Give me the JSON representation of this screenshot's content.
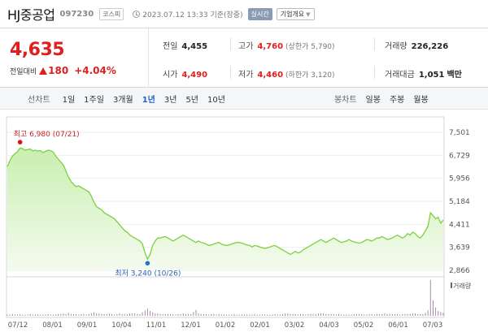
{
  "header": {
    "name": "HJ중공업",
    "code": "097230",
    "market": "코스피",
    "timestamp": "2023.07.12 13:33 기준(장중)",
    "realtime": "실시간",
    "company_button": "기업개요"
  },
  "quote": {
    "price": "4,635",
    "change_label": "전일대비",
    "change": "180",
    "change_percent": "+4.04%",
    "direction_icon": "up-triangle-icon",
    "prev_close_label": "전일",
    "prev_close": "4,455",
    "high_label": "고가",
    "high": "4,760",
    "upper_limit": "(상한가 5,790)",
    "volume_label": "거래량",
    "volume": "226,226",
    "open_label": "시가",
    "open": "4,490",
    "low_label": "저가",
    "low": "4,460",
    "lower_limit": "(하한가 3,120)",
    "amount_label": "거래대금",
    "amount": "1,051",
    "amount_unit": "백만"
  },
  "toolbar": {
    "line_label": "선차트",
    "periods": [
      "1일",
      "1주일",
      "3개월",
      "1년",
      "3년",
      "5년",
      "10년"
    ],
    "active_period": "1년",
    "candle_label": "봉차트",
    "candles": [
      "일봉",
      "주봉",
      "월봉"
    ]
  },
  "colors": {
    "up": "#e01e1e",
    "line": "#7fcf3f",
    "accent": "#2463c9"
  },
  "chart_data": {
    "type": "area",
    "y_ticks": [
      "7,501",
      "6,729",
      "5,956",
      "5,184",
      "4,411",
      "3,639",
      "2,866"
    ],
    "y_tick_values": [
      7501,
      6729,
      5956,
      5184,
      4411,
      3639,
      2866
    ],
    "ylim": [
      2866,
      7501
    ],
    "x_ticks": [
      "07/12",
      "08/01",
      "09/01",
      "10/04",
      "11/01",
      "12/01",
      "01/02",
      "02/01",
      "03/02",
      "04/03",
      "05/02",
      "06/01",
      "07/03"
    ],
    "high_annotation": "최고 6,980 (07/21)",
    "low_annotation": "최저 3,240 (10/26)",
    "high_value": 6980,
    "low_value": 3240,
    "volume_legend": "거래량",
    "series": [
      {
        "values": [
          6350,
          6550,
          6700,
          6780,
          6850,
          6980,
          6950,
          6900,
          6920,
          6940,
          6880,
          6900,
          6870,
          6890,
          6820,
          6860,
          6900,
          6880,
          6840,
          6700,
          6600,
          6500,
          6400,
          6200,
          6000,
          5850,
          5750,
          5680,
          5700,
          5650,
          5600,
          5550,
          5500,
          5350,
          5150,
          5000,
          4950,
          4900,
          4800,
          4750,
          4700,
          4650,
          4600,
          4500,
          4400,
          4300,
          4200,
          4150,
          4050,
          4000,
          3950,
          3900,
          3850,
          3750,
          3450,
          3240,
          3400,
          3700,
          3850,
          3950,
          3950,
          3980,
          4000,
          3950,
          3900,
          3850,
          3900,
          3950,
          4000,
          4050,
          4000,
          3950,
          3900,
          3850,
          3800,
          3850,
          3800,
          3780,
          3750,
          3700,
          3720,
          3750,
          3780,
          3800,
          3750,
          3720,
          3700,
          3720,
          3750,
          3780,
          3800,
          3800,
          3780,
          3750,
          3720,
          3700,
          3650,
          3700,
          3680,
          3650,
          3620,
          3600,
          3620,
          3650,
          3680,
          3700,
          3650,
          3600,
          3550,
          3500,
          3450,
          3400,
          3450,
          3500,
          3450,
          3480,
          3550,
          3600,
          3650,
          3700,
          3750,
          3800,
          3850,
          3900,
          3850,
          3800,
          3850,
          3900,
          3950,
          3900,
          3850,
          3800,
          3820,
          3850,
          3900,
          3850,
          3820,
          3800,
          3780,
          3800,
          3850,
          3900,
          3880,
          3850,
          3900,
          3950,
          3950,
          4000,
          3950,
          3900,
          3920,
          3950,
          4000,
          4050,
          4000,
          3950,
          4000,
          4100,
          4050,
          4150,
          4100,
          4000,
          3950,
          4050,
          4200,
          4350,
          4800,
          4700,
          4600,
          4650,
          4450,
          4550
        ]
      }
    ],
    "volume": [
      2,
      2,
      3,
      2,
      2,
      3,
      2,
      2,
      2,
      3,
      2,
      2,
      2,
      2,
      2,
      2,
      3,
      2,
      2,
      2,
      3,
      3,
      4,
      3,
      5,
      3,
      3,
      3,
      2,
      3,
      3,
      2,
      3,
      4,
      6,
      4,
      4,
      3,
      3,
      3,
      4,
      3,
      2,
      3,
      4,
      3,
      3,
      3,
      4,
      4,
      4,
      3,
      3,
      6,
      9,
      12,
      8,
      6,
      4,
      4,
      3,
      3,
      3,
      3,
      3,
      3,
      2,
      3,
      3,
      4,
      3,
      3,
      3,
      6,
      10,
      4,
      3,
      3,
      3,
      2,
      3,
      3,
      2,
      3,
      2,
      2,
      2,
      2,
      2,
      3,
      2,
      2,
      2,
      2,
      2,
      2,
      2,
      3,
      2,
      2,
      2,
      2,
      2,
      2,
      2,
      3,
      2,
      2,
      3,
      4,
      4,
      3,
      3,
      3,
      2,
      3,
      3,
      2,
      3,
      3,
      3,
      3,
      4,
      4,
      4,
      3,
      3,
      3,
      3,
      2,
      3,
      2,
      2,
      2,
      2,
      2,
      3,
      3,
      3,
      3,
      2,
      2,
      3,
      3,
      2,
      3,
      3,
      3,
      4,
      3,
      3,
      3,
      3,
      3,
      2,
      3,
      3,
      3,
      3,
      4,
      4,
      3,
      3,
      3,
      5,
      9,
      60,
      26,
      14,
      8,
      6,
      5
    ]
  }
}
